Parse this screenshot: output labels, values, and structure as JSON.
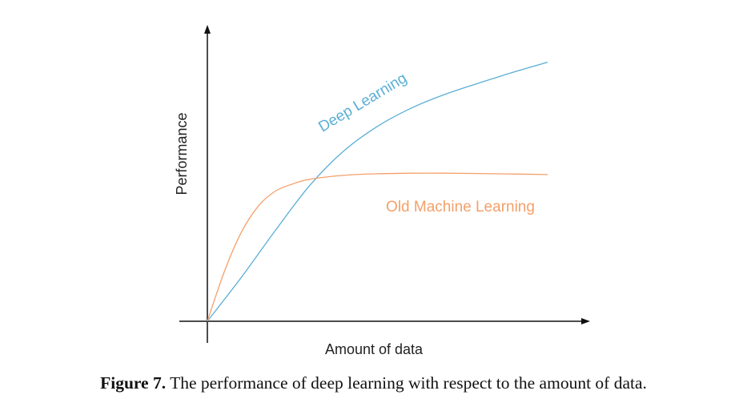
{
  "chart_data": {
    "type": "line",
    "xlabel": "Amount of data",
    "ylabel": "Performance",
    "xlim": [
      0,
      1
    ],
    "ylim": [
      0,
      1
    ],
    "grid": false,
    "legend": "inline labels beside curves",
    "axis_ticks": "none",
    "series": [
      {
        "name": "Deep Learning",
        "color": "#5aaed6",
        "x": [
          0,
          0.1,
          0.2,
          0.3,
          0.4,
          0.5,
          0.6,
          0.7,
          0.8,
          0.9,
          1.0
        ],
        "y": [
          0,
          0.168,
          0.347,
          0.517,
          0.649,
          0.744,
          0.814,
          0.867,
          0.91,
          0.951,
          0.989
        ]
      },
      {
        "name": "Old Machine Learning",
        "color": "#f4a06a",
        "x": [
          0,
          0.05,
          0.1,
          0.15,
          0.2,
          0.25,
          0.3,
          0.4,
          0.5,
          0.6,
          0.7,
          0.8,
          0.9,
          1.0
        ],
        "y": [
          0,
          0.19,
          0.34,
          0.44,
          0.497,
          0.524,
          0.542,
          0.557,
          0.563,
          0.565,
          0.565,
          0.564,
          0.562,
          0.56
        ]
      }
    ]
  },
  "caption": {
    "label": "Figure 7.",
    "text": " The performance of deep learning with respect to the amount of data."
  }
}
